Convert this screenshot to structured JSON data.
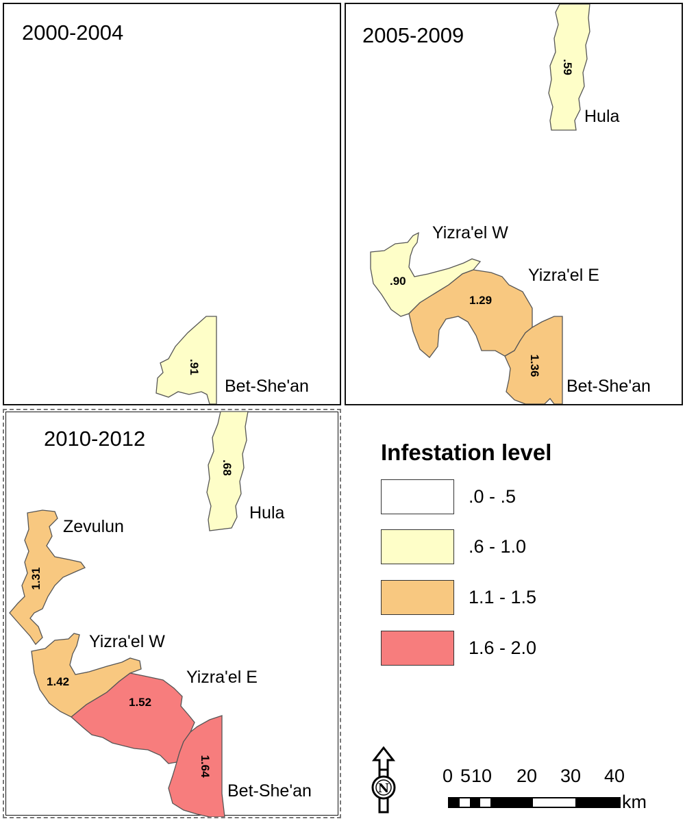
{
  "panels": [
    {
      "title": "2000-2004",
      "regions": [
        {
          "name": "Bet-She'an",
          "value": ".91",
          "class": "0.6-1.0"
        }
      ]
    },
    {
      "title": "2005-2009",
      "regions": [
        {
          "name": "Hula",
          "value": ".59",
          "class": "0.6-1.0"
        },
        {
          "name": "Yizra'el W",
          "value": ".90",
          "class": "0.6-1.0"
        },
        {
          "name": "Yizra'el E",
          "value": "1.29",
          "class": "1.1-1.5"
        },
        {
          "name": "Bet-She'an",
          "value": "1.36",
          "class": "1.1-1.5"
        }
      ]
    },
    {
      "title": "2010-2012",
      "regions": [
        {
          "name": "Hula",
          "value": ".68",
          "class": "0.6-1.0"
        },
        {
          "name": "Zevulun",
          "value": "1.31",
          "class": "1.1-1.5"
        },
        {
          "name": "Yizra'el W",
          "value": "1.42",
          "class": "1.1-1.5"
        },
        {
          "name": "Yizra'el E",
          "value": "1.52",
          "class": "1.6-2.0"
        },
        {
          "name": "Bet-She'an",
          "value": "1.64",
          "class": "1.6-2.0"
        }
      ]
    }
  ],
  "legend": {
    "title": "Infestation level",
    "items": [
      {
        "label": ".0 - .5",
        "color": "#ffffff"
      },
      {
        "label": ".6 - 1.0",
        "color": "#fefec8"
      },
      {
        "label": "1.1 - 1.5",
        "color": "#f8c880"
      },
      {
        "label": "1.6 - 2.0",
        "color": "#f77d7d"
      }
    ]
  },
  "north_arrow": {
    "letter": "N"
  },
  "scale": {
    "ticks": [
      "0",
      "5",
      "10",
      "20",
      "30",
      "40"
    ],
    "unit": "km"
  }
}
